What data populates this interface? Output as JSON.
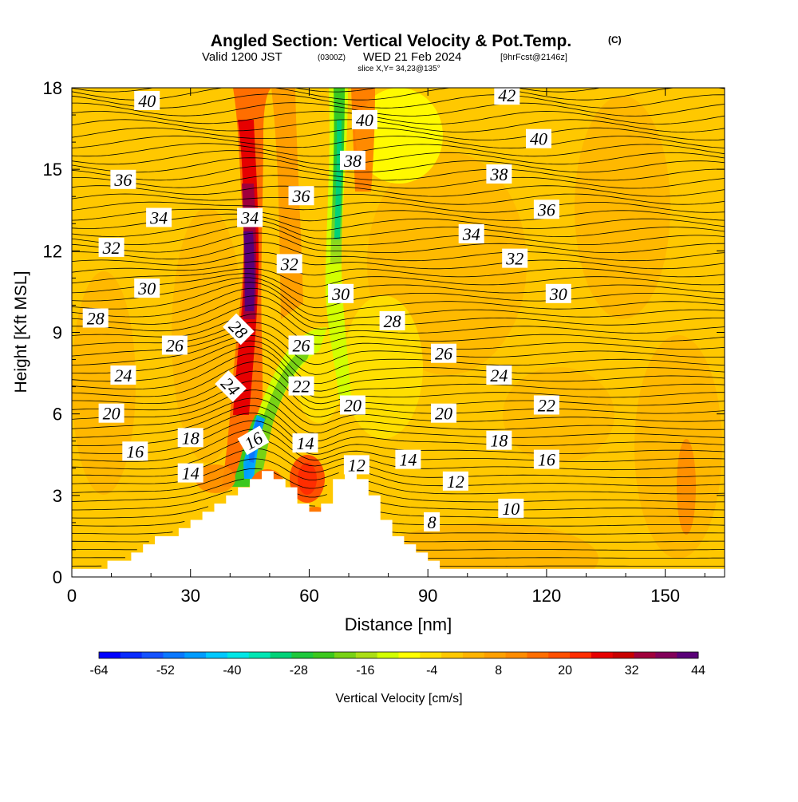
{
  "chart_data": {
    "type": "heatmap",
    "title": "Angled Section: Vertical Velocity & Pot.Temp.",
    "title_mark": "(C)",
    "subtitle_valid": "Valid 1200 JST",
    "subtitle_utc": "(0300Z)",
    "subtitle_date": "WED 21 Feb 2024",
    "subtitle_fcst": "[9hrFcst@2146z]",
    "slice_label": "slice X,Y= 34,23@135°",
    "xlabel": "Distance [nm]",
    "ylabel": "Height [Kft MSL]",
    "xlim": [
      0,
      165
    ],
    "ylim": [
      0,
      18
    ],
    "x_ticks": [
      0,
      30,
      60,
      90,
      120,
      150
    ],
    "y_ticks": [
      0,
      3,
      6,
      9,
      12,
      15,
      18
    ],
    "colorbar": {
      "label": "Vertical Velocity [cm/s]",
      "tick_labels": [
        -64,
        -52,
        -40,
        -28,
        -16,
        -4,
        8,
        20,
        32,
        44
      ],
      "range": [
        -64,
        44
      ],
      "colors": [
        "#0000ff",
        "#0a2cff",
        "#1452ff",
        "#0a78ff",
        "#009cff",
        "#00c8ff",
        "#00e6e6",
        "#00e6b4",
        "#00d278",
        "#1ec83c",
        "#3cc81e",
        "#78d214",
        "#aade14",
        "#d2ff00",
        "#ffff00",
        "#ffe100",
        "#ffc800",
        "#ffb400",
        "#ffa000",
        "#ff8c00",
        "#ff6e00",
        "#ff5000",
        "#ff2d00",
        "#e60000",
        "#c80000",
        "#a0003c",
        "#82005a",
        "#5a0078"
      ]
    },
    "terrain": [
      [
        0,
        0.3
      ],
      [
        9,
        0.3
      ],
      [
        9,
        0.6
      ],
      [
        15,
        0.6
      ],
      [
        15,
        0.9
      ],
      [
        18,
        0.9
      ],
      [
        18,
        1.2
      ],
      [
        21,
        1.2
      ],
      [
        21,
        1.5
      ],
      [
        27,
        1.5
      ],
      [
        27,
        1.8
      ],
      [
        30,
        1.8
      ],
      [
        30,
        2.1
      ],
      [
        33,
        2.1
      ],
      [
        33,
        2.4
      ],
      [
        36,
        2.4
      ],
      [
        36,
        2.7
      ],
      [
        39,
        2.7
      ],
      [
        39,
        3.0
      ],
      [
        42,
        3.0
      ],
      [
        42,
        3.3
      ],
      [
        45,
        3.3
      ],
      [
        45,
        3.6
      ],
      [
        48,
        3.6
      ],
      [
        48,
        3.9
      ],
      [
        51,
        3.9
      ],
      [
        51,
        3.6
      ],
      [
        54,
        3.6
      ],
      [
        54,
        3.3
      ],
      [
        57,
        3.3
      ],
      [
        57,
        2.7
      ],
      [
        60,
        2.7
      ],
      [
        60,
        2.4
      ],
      [
        63,
        2.4
      ],
      [
        63,
        2.7
      ],
      [
        66,
        2.7
      ],
      [
        66,
        3.6
      ],
      [
        69,
        3.6
      ],
      [
        69,
        3.9
      ],
      [
        72,
        3.9
      ],
      [
        72,
        3.6
      ],
      [
        75,
        3.6
      ],
      [
        75,
        3.0
      ],
      [
        78,
        3.0
      ],
      [
        78,
        2.1
      ],
      [
        81,
        2.1
      ],
      [
        81,
        1.5
      ],
      [
        84,
        1.5
      ],
      [
        84,
        1.2
      ],
      [
        87,
        1.2
      ],
      [
        87,
        0.9
      ],
      [
        90,
        0.9
      ],
      [
        90,
        0.6
      ],
      [
        93,
        0.6
      ],
      [
        93,
        0.3
      ],
      [
        165,
        0.3
      ]
    ],
    "theta_labels": [
      {
        "text": "40",
        "x": 19,
        "y": 17.5,
        "rot": 0
      },
      {
        "text": "40",
        "x": 74,
        "y": 16.8,
        "rot": 0
      },
      {
        "text": "42",
        "x": 110,
        "y": 17.7,
        "rot": 0
      },
      {
        "text": "40",
        "x": 118,
        "y": 16.1,
        "rot": 0
      },
      {
        "text": "38",
        "x": 71,
        "y": 15.3,
        "rot": 0
      },
      {
        "text": "38",
        "x": 108,
        "y": 14.8,
        "rot": 0
      },
      {
        "text": "36",
        "x": 13,
        "y": 14.6,
        "rot": 0
      },
      {
        "text": "36",
        "x": 58,
        "y": 14.0,
        "rot": 0
      },
      {
        "text": "36",
        "x": 120,
        "y": 13.5,
        "rot": 0
      },
      {
        "text": "34",
        "x": 22,
        "y": 13.2,
        "rot": 0
      },
      {
        "text": "34",
        "x": 45,
        "y": 13.2,
        "rot": 0
      },
      {
        "text": "34",
        "x": 101,
        "y": 12.6,
        "rot": 0
      },
      {
        "text": "32",
        "x": 10,
        "y": 12.1,
        "rot": 0
      },
      {
        "text": "32",
        "x": 55,
        "y": 11.5,
        "rot": 0
      },
      {
        "text": "32",
        "x": 112,
        "y": 11.7,
        "rot": 0
      },
      {
        "text": "30",
        "x": 19,
        "y": 10.6,
        "rot": 0
      },
      {
        "text": "30",
        "x": 68,
        "y": 10.4,
        "rot": 0
      },
      {
        "text": "30",
        "x": 123,
        "y": 10.4,
        "rot": 0
      },
      {
        "text": "28",
        "x": 6,
        "y": 9.5,
        "rot": 0
      },
      {
        "text": "28",
        "x": 42,
        "y": 9.1,
        "rot": 45
      },
      {
        "text": "28",
        "x": 81,
        "y": 9.4,
        "rot": 0
      },
      {
        "text": "26",
        "x": 26,
        "y": 8.5,
        "rot": 0
      },
      {
        "text": "26",
        "x": 58,
        "y": 8.5,
        "rot": 0
      },
      {
        "text": "26",
        "x": 94,
        "y": 8.2,
        "rot": 0
      },
      {
        "text": "24",
        "x": 13,
        "y": 7.4,
        "rot": 0
      },
      {
        "text": "24",
        "x": 40,
        "y": 7.0,
        "rot": 45
      },
      {
        "text": "24",
        "x": 108,
        "y": 7.4,
        "rot": 0
      },
      {
        "text": "22",
        "x": 58,
        "y": 7.0,
        "rot": 0
      },
      {
        "text": "22",
        "x": 120,
        "y": 6.3,
        "rot": 0
      },
      {
        "text": "20",
        "x": 10,
        "y": 6.0,
        "rot": 0
      },
      {
        "text": "20",
        "x": 71,
        "y": 6.3,
        "rot": 0
      },
      {
        "text": "20",
        "x": 94,
        "y": 6.0,
        "rot": 0
      },
      {
        "text": "18",
        "x": 30,
        "y": 5.1,
        "rot": 0
      },
      {
        "text": "18",
        "x": 108,
        "y": 5.0,
        "rot": 0
      },
      {
        "text": "16",
        "x": 16,
        "y": 4.6,
        "rot": 0
      },
      {
        "text": "16",
        "x": 46,
        "y": 5.0,
        "rot": -30
      },
      {
        "text": "16",
        "x": 120,
        "y": 4.3,
        "rot": 0
      },
      {
        "text": "14",
        "x": 59,
        "y": 4.9,
        "rot": 0
      },
      {
        "text": "14",
        "x": 30,
        "y": 3.8,
        "rot": 0
      },
      {
        "text": "14",
        "x": 85,
        "y": 4.3,
        "rot": 0
      },
      {
        "text": "12",
        "x": 72,
        "y": 4.1,
        "rot": 0
      },
      {
        "text": "12",
        "x": 97,
        "y": 3.5,
        "rot": 0
      },
      {
        "text": "10",
        "x": 111,
        "y": 2.5,
        "rot": 0
      },
      {
        "text": "8",
        "x": 91,
        "y": 2.0,
        "rot": 0
      }
    ],
    "velocity_features": [
      {
        "name": "updraft-column",
        "x": 45,
        "y": 10,
        "rx": 5,
        "ry": 7,
        "value": 40
      },
      {
        "name": "downdraft-column",
        "x": 68,
        "y": 13,
        "rx": 3,
        "ry": 9,
        "value": -20
      },
      {
        "name": "lee-downdraft",
        "x": 46,
        "y": 5,
        "rx": 3,
        "ry": 2,
        "value": -45
      }
    ]
  }
}
